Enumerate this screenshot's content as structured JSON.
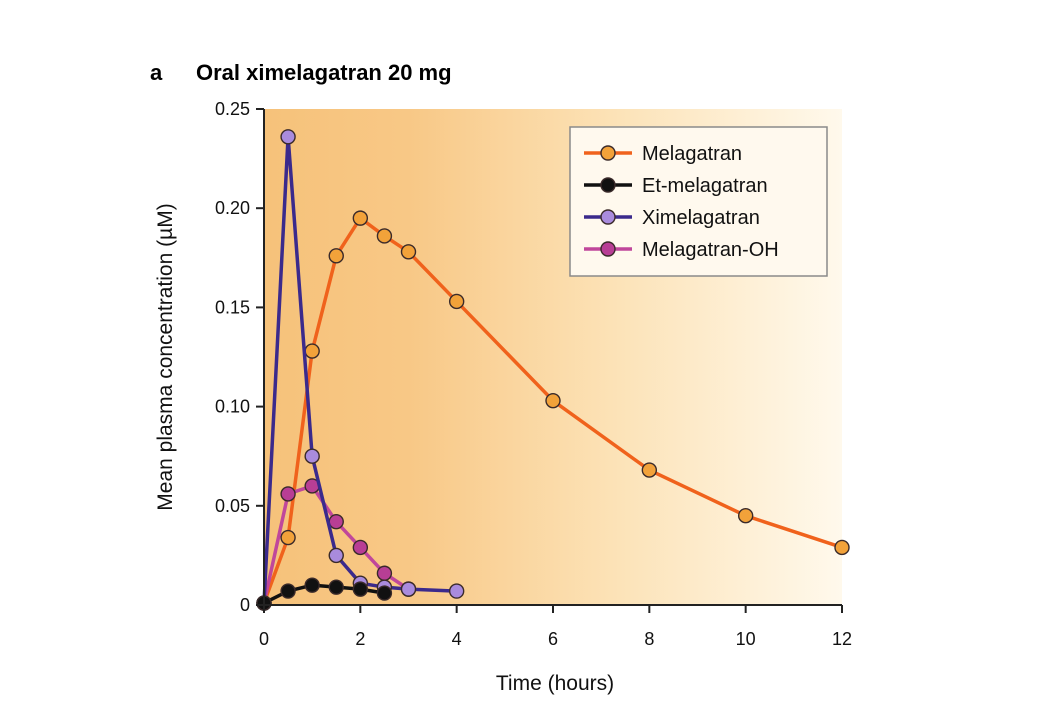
{
  "panel_letter": "a",
  "chart_data": {
    "type": "line",
    "title": "Oral ximelagatran 20 mg",
    "xlabel": "Time (hours)",
    "ylabel": "Mean plasma concentration (µM)",
    "xlim": [
      0,
      12
    ],
    "ylim": [
      0,
      0.25
    ],
    "x_ticks": [
      0,
      2,
      4,
      6,
      8,
      10,
      12
    ],
    "x_tick_labels": [
      "0",
      "2",
      "4",
      "6",
      "8",
      "10",
      "12"
    ],
    "y_ticks": [
      0,
      0.05,
      0.1,
      0.15,
      0.2,
      0.25
    ],
    "y_tick_labels": [
      "0",
      "0.05",
      "0.10",
      "0.15",
      "0.20",
      "0.25"
    ],
    "grid": false,
    "legend_position": "top-right",
    "background": "orange gradient",
    "series": [
      {
        "name": "Melagatran",
        "line_color": "#F0621C",
        "marker_color": "#F2A23A",
        "x": [
          0,
          0.5,
          1,
          1.5,
          2,
          2.5,
          3,
          4,
          6,
          8,
          10,
          12
        ],
        "y": [
          0.001,
          0.034,
          0.128,
          0.176,
          0.195,
          0.186,
          0.178,
          0.153,
          0.103,
          0.068,
          0.045,
          0.029
        ]
      },
      {
        "name": "Et-melagatran",
        "line_color": "#111111",
        "marker_color": "#111111",
        "x": [
          0,
          0.5,
          1,
          1.5,
          2,
          2.5
        ],
        "y": [
          0.001,
          0.007,
          0.01,
          0.009,
          0.008,
          0.006
        ]
      },
      {
        "name": "Ximelagatran",
        "line_color": "#3B2A8C",
        "marker_color": "#A98BDD",
        "x": [
          0,
          0.5,
          1,
          1.5,
          2,
          2.5,
          3,
          4
        ],
        "y": [
          0.001,
          0.236,
          0.075,
          0.025,
          0.011,
          0.009,
          0.008,
          0.007
        ]
      },
      {
        "name": "Melagatran-OH",
        "line_color": "#C0479B",
        "marker_color": "#B83E95",
        "x": [
          0,
          0.5,
          1,
          1.5,
          2,
          2.5,
          3
        ],
        "y": [
          0.001,
          0.056,
          0.06,
          0.042,
          0.029,
          0.016,
          0.008
        ]
      }
    ]
  }
}
